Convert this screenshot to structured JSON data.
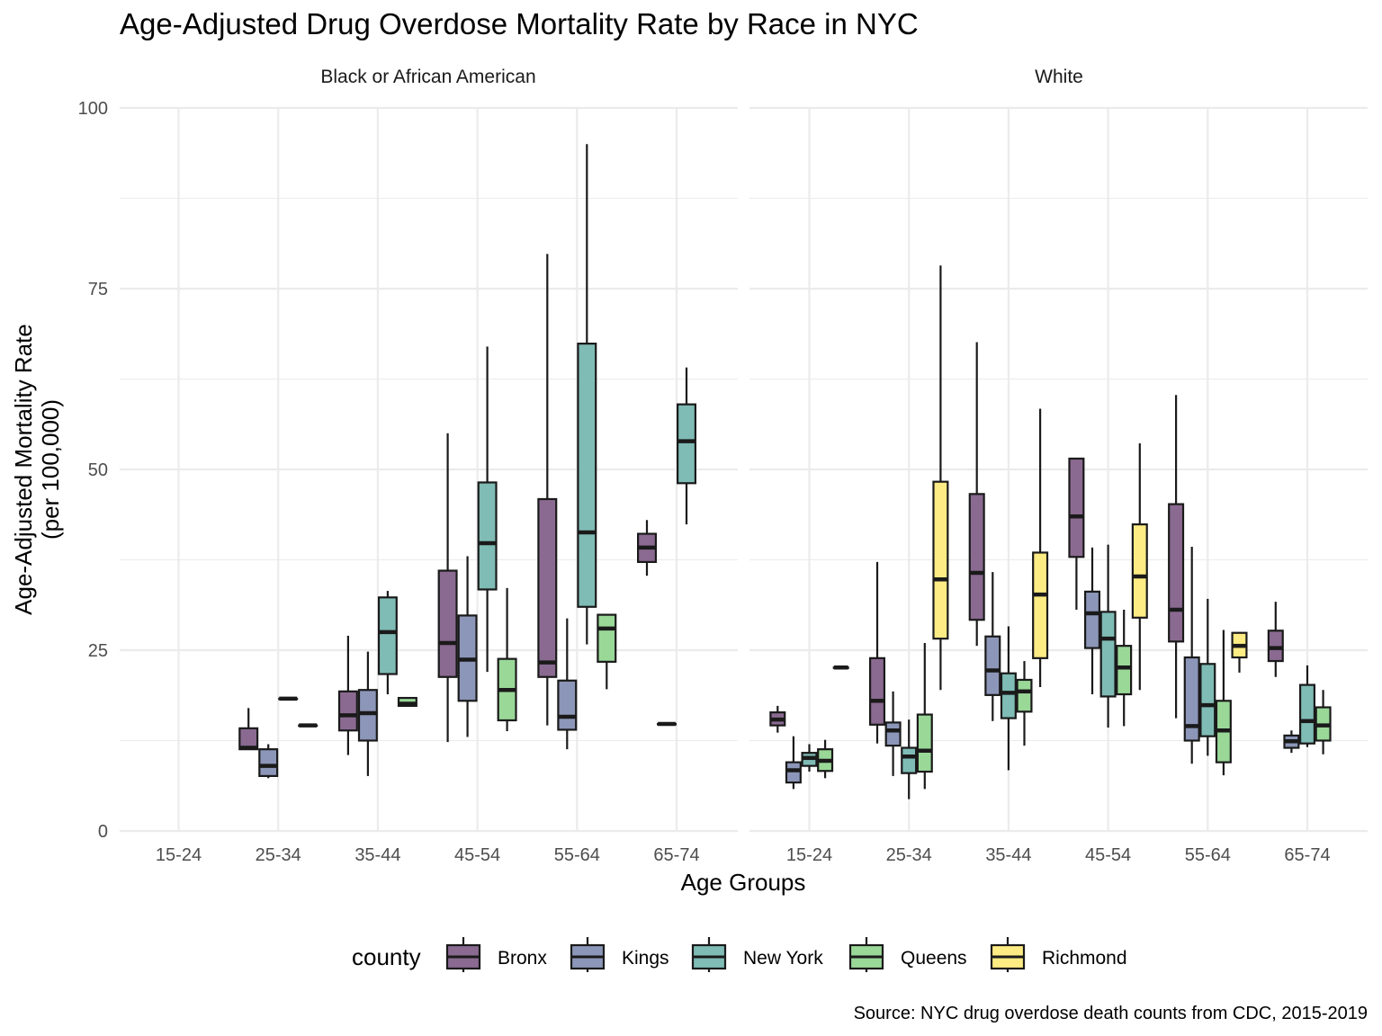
{
  "chart_data": {
    "type": "boxplot",
    "title": "Age-Adjusted Drug Overdose Mortality Rate by Race in NYC",
    "xlabel": "Age Groups",
    "ylabel": "Age-Adjusted Mortality Rate",
    "ylabel_sub": "(per 100,000)",
    "caption": "Source: NYC drug overdose death counts from CDC, 2015-2019",
    "ylim": [
      0,
      100
    ],
    "yticks": [
      0,
      25,
      50,
      75,
      100
    ],
    "grid": true,
    "categories": [
      "15-24",
      "25-34",
      "35-44",
      "45-54",
      "55-64",
      "65-74"
    ],
    "legend": {
      "title": "county",
      "position": "bottom",
      "items": [
        "Bronx",
        "Kings",
        "New York",
        "Queens",
        "Richmond"
      ]
    },
    "colors": {
      "Bronx": "#8a6a91",
      "Kings": "#8c96b8",
      "New York": "#7fbcb5",
      "Queens": "#9ad898",
      "Richmond": "#fdeb84"
    },
    "panels": [
      {
        "label": "Black or African American",
        "counties": [
          "Bronx",
          "Kings",
          "New York",
          "Queens"
        ],
        "boxes": [
          {
            "group": "25-34",
            "county": "Bronx",
            "min": 11.3,
            "q1": 11.3,
            "median": 11.5,
            "q3": 14.2,
            "max": 17.0
          },
          {
            "group": "25-34",
            "county": "Kings",
            "min": 7.3,
            "q1": 7.6,
            "median": 9.0,
            "q3": 11.3,
            "max": 12.0
          },
          {
            "group": "25-34",
            "county": "New York",
            "min": 18.3,
            "q1": 18.3,
            "median": 18.3,
            "q3": 18.3,
            "max": 18.3
          },
          {
            "group": "25-34",
            "county": "Queens",
            "min": 14.6,
            "q1": 14.6,
            "median": 14.6,
            "q3": 14.6,
            "max": 14.6
          },
          {
            "group": "35-44",
            "county": "Bronx",
            "min": 10.5,
            "q1": 13.9,
            "median": 16.0,
            "q3": 19.3,
            "max": 27.0
          },
          {
            "group": "35-44",
            "county": "Kings",
            "min": 7.6,
            "q1": 12.5,
            "median": 16.3,
            "q3": 19.5,
            "max": 24.8
          },
          {
            "group": "35-44",
            "county": "New York",
            "min": 18.9,
            "q1": 21.7,
            "median": 27.5,
            "q3": 32.3,
            "max": 33.2
          },
          {
            "group": "35-44",
            "county": "Queens",
            "min": 17.3,
            "q1": 17.3,
            "median": 17.6,
            "q3": 18.4,
            "max": 18.4
          },
          {
            "group": "45-54",
            "county": "Bronx",
            "min": 12.3,
            "q1": 21.3,
            "median": 26.0,
            "q3": 36.0,
            "max": 55.0
          },
          {
            "group": "45-54",
            "county": "Kings",
            "min": 13.0,
            "q1": 18.0,
            "median": 23.7,
            "q3": 29.8,
            "max": 38.0
          },
          {
            "group": "45-54",
            "county": "New York",
            "min": 22.0,
            "q1": 33.4,
            "median": 39.8,
            "q3": 48.2,
            "max": 67.0
          },
          {
            "group": "45-54",
            "county": "Queens",
            "min": 13.8,
            "q1": 15.3,
            "median": 19.5,
            "q3": 23.8,
            "max": 33.6
          },
          {
            "group": "55-64",
            "county": "Bronx",
            "min": 14.6,
            "q1": 21.3,
            "median": 23.3,
            "q3": 45.9,
            "max": 79.8
          },
          {
            "group": "55-64",
            "county": "Kings",
            "min": 11.3,
            "q1": 14.0,
            "median": 15.8,
            "q3": 20.8,
            "max": 29.4
          },
          {
            "group": "55-64",
            "county": "New York",
            "min": 25.8,
            "q1": 31.0,
            "median": 41.3,
            "q3": 67.4,
            "max": 95.0
          },
          {
            "group": "55-64",
            "county": "Queens",
            "min": 19.6,
            "q1": 23.4,
            "median": 28.0,
            "q3": 29.9,
            "max": 29.9
          },
          {
            "group": "65-74",
            "county": "Bronx",
            "min": 35.3,
            "q1": 37.2,
            "median": 39.2,
            "q3": 41.1,
            "max": 43.0
          },
          {
            "group": "65-74",
            "county": "Kings",
            "min": 14.8,
            "q1": 14.8,
            "median": 14.8,
            "q3": 14.8,
            "max": 14.8
          },
          {
            "group": "65-74",
            "county": "New York",
            "min": 42.4,
            "q1": 48.1,
            "median": 53.9,
            "q3": 59.0,
            "max": 64.1
          }
        ]
      },
      {
        "label": "White",
        "counties": [
          "Bronx",
          "Kings",
          "New York",
          "Queens",
          "Richmond"
        ],
        "boxes": [
          {
            "group": "15-24",
            "county": "Bronx",
            "min": 13.6,
            "q1": 14.6,
            "median": 15.4,
            "q3": 16.4,
            "max": 17.3
          },
          {
            "group": "15-24",
            "county": "Kings",
            "min": 5.8,
            "q1": 6.7,
            "median": 8.4,
            "q3": 9.5,
            "max": 13.1
          },
          {
            "group": "15-24",
            "county": "New York",
            "min": 8.2,
            "q1": 9.0,
            "median": 10.1,
            "q3": 10.8,
            "max": 12.0
          },
          {
            "group": "15-24",
            "county": "Queens",
            "min": 7.3,
            "q1": 8.3,
            "median": 9.7,
            "q3": 11.3,
            "max": 12.6
          },
          {
            "group": "15-24",
            "county": "Richmond",
            "min": 22.6,
            "q1": 22.6,
            "median": 22.6,
            "q3": 22.6,
            "max": 22.6
          },
          {
            "group": "25-34",
            "county": "Bronx",
            "min": 12.1,
            "q1": 14.7,
            "median": 18.0,
            "q3": 23.9,
            "max": 37.2
          },
          {
            "group": "25-34",
            "county": "Kings",
            "min": 7.6,
            "q1": 11.8,
            "median": 13.9,
            "q3": 15.0,
            "max": 19.3
          },
          {
            "group": "25-34",
            "county": "New York",
            "min": 4.4,
            "q1": 8.0,
            "median": 10.3,
            "q3": 11.5,
            "max": 15.4
          },
          {
            "group": "25-34",
            "county": "Queens",
            "min": 5.8,
            "q1": 8.2,
            "median": 11.1,
            "q3": 16.1,
            "max": 26.0
          },
          {
            "group": "25-34",
            "county": "Richmond",
            "min": 19.5,
            "q1": 26.6,
            "median": 34.8,
            "q3": 48.3,
            "max": 78.2
          },
          {
            "group": "35-44",
            "county": "Bronx",
            "min": 25.6,
            "q1": 29.2,
            "median": 35.7,
            "q3": 46.6,
            "max": 67.6
          },
          {
            "group": "35-44",
            "county": "Kings",
            "min": 15.2,
            "q1": 18.8,
            "median": 22.2,
            "q3": 26.9,
            "max": 35.8
          },
          {
            "group": "35-44",
            "county": "New York",
            "min": 8.4,
            "q1": 15.6,
            "median": 19.1,
            "q3": 21.8,
            "max": 28.3
          },
          {
            "group": "35-44",
            "county": "Queens",
            "min": 11.8,
            "q1": 16.5,
            "median": 19.3,
            "q3": 20.9,
            "max": 23.5
          },
          {
            "group": "35-44",
            "county": "Richmond",
            "min": 19.9,
            "q1": 23.9,
            "median": 32.7,
            "q3": 38.5,
            "max": 58.4
          },
          {
            "group": "45-54",
            "county": "Bronx",
            "min": 30.6,
            "q1": 37.9,
            "median": 43.5,
            "q3": 51.5,
            "max": 51.5
          },
          {
            "group": "45-54",
            "county": "Kings",
            "min": 18.9,
            "q1": 25.3,
            "median": 30.1,
            "q3": 33.1,
            "max": 39.2
          },
          {
            "group": "45-54",
            "county": "New York",
            "min": 14.3,
            "q1": 18.6,
            "median": 26.6,
            "q3": 30.3,
            "max": 39.6
          },
          {
            "group": "45-54",
            "county": "Queens",
            "min": 14.5,
            "q1": 18.9,
            "median": 22.6,
            "q3": 25.6,
            "max": 30.6
          },
          {
            "group": "45-54",
            "county": "Richmond",
            "min": 19.5,
            "q1": 29.5,
            "median": 35.2,
            "q3": 42.4,
            "max": 53.6
          },
          {
            "group": "55-64",
            "county": "Bronx",
            "min": 15.6,
            "q1": 26.2,
            "median": 30.6,
            "q3": 45.2,
            "max": 60.3
          },
          {
            "group": "55-64",
            "county": "Kings",
            "min": 9.3,
            "q1": 12.5,
            "median": 14.5,
            "q3": 24.0,
            "max": 39.3
          },
          {
            "group": "55-64",
            "county": "New York",
            "min": 10.4,
            "q1": 13.1,
            "median": 17.4,
            "q3": 23.1,
            "max": 32.1
          },
          {
            "group": "55-64",
            "county": "Queens",
            "min": 7.7,
            "q1": 9.5,
            "median": 13.9,
            "q3": 18.0,
            "max": 27.8
          },
          {
            "group": "55-64",
            "county": "Richmond",
            "min": 21.9,
            "q1": 24.0,
            "median": 25.6,
            "q3": 27.4,
            "max": 27.4
          },
          {
            "group": "65-74",
            "county": "Bronx",
            "min": 21.3,
            "q1": 23.5,
            "median": 25.3,
            "q3": 27.7,
            "max": 31.7
          },
          {
            "group": "65-74",
            "county": "Kings",
            "min": 10.8,
            "q1": 11.5,
            "median": 12.4,
            "q3": 13.2,
            "max": 13.9
          },
          {
            "group": "65-74",
            "county": "New York",
            "min": 11.6,
            "q1": 12.1,
            "median": 15.2,
            "q3": 20.2,
            "max": 22.9
          },
          {
            "group": "65-74",
            "county": "Queens",
            "min": 10.6,
            "q1": 12.5,
            "median": 14.6,
            "q3": 17.1,
            "max": 19.5
          }
        ]
      }
    ]
  }
}
